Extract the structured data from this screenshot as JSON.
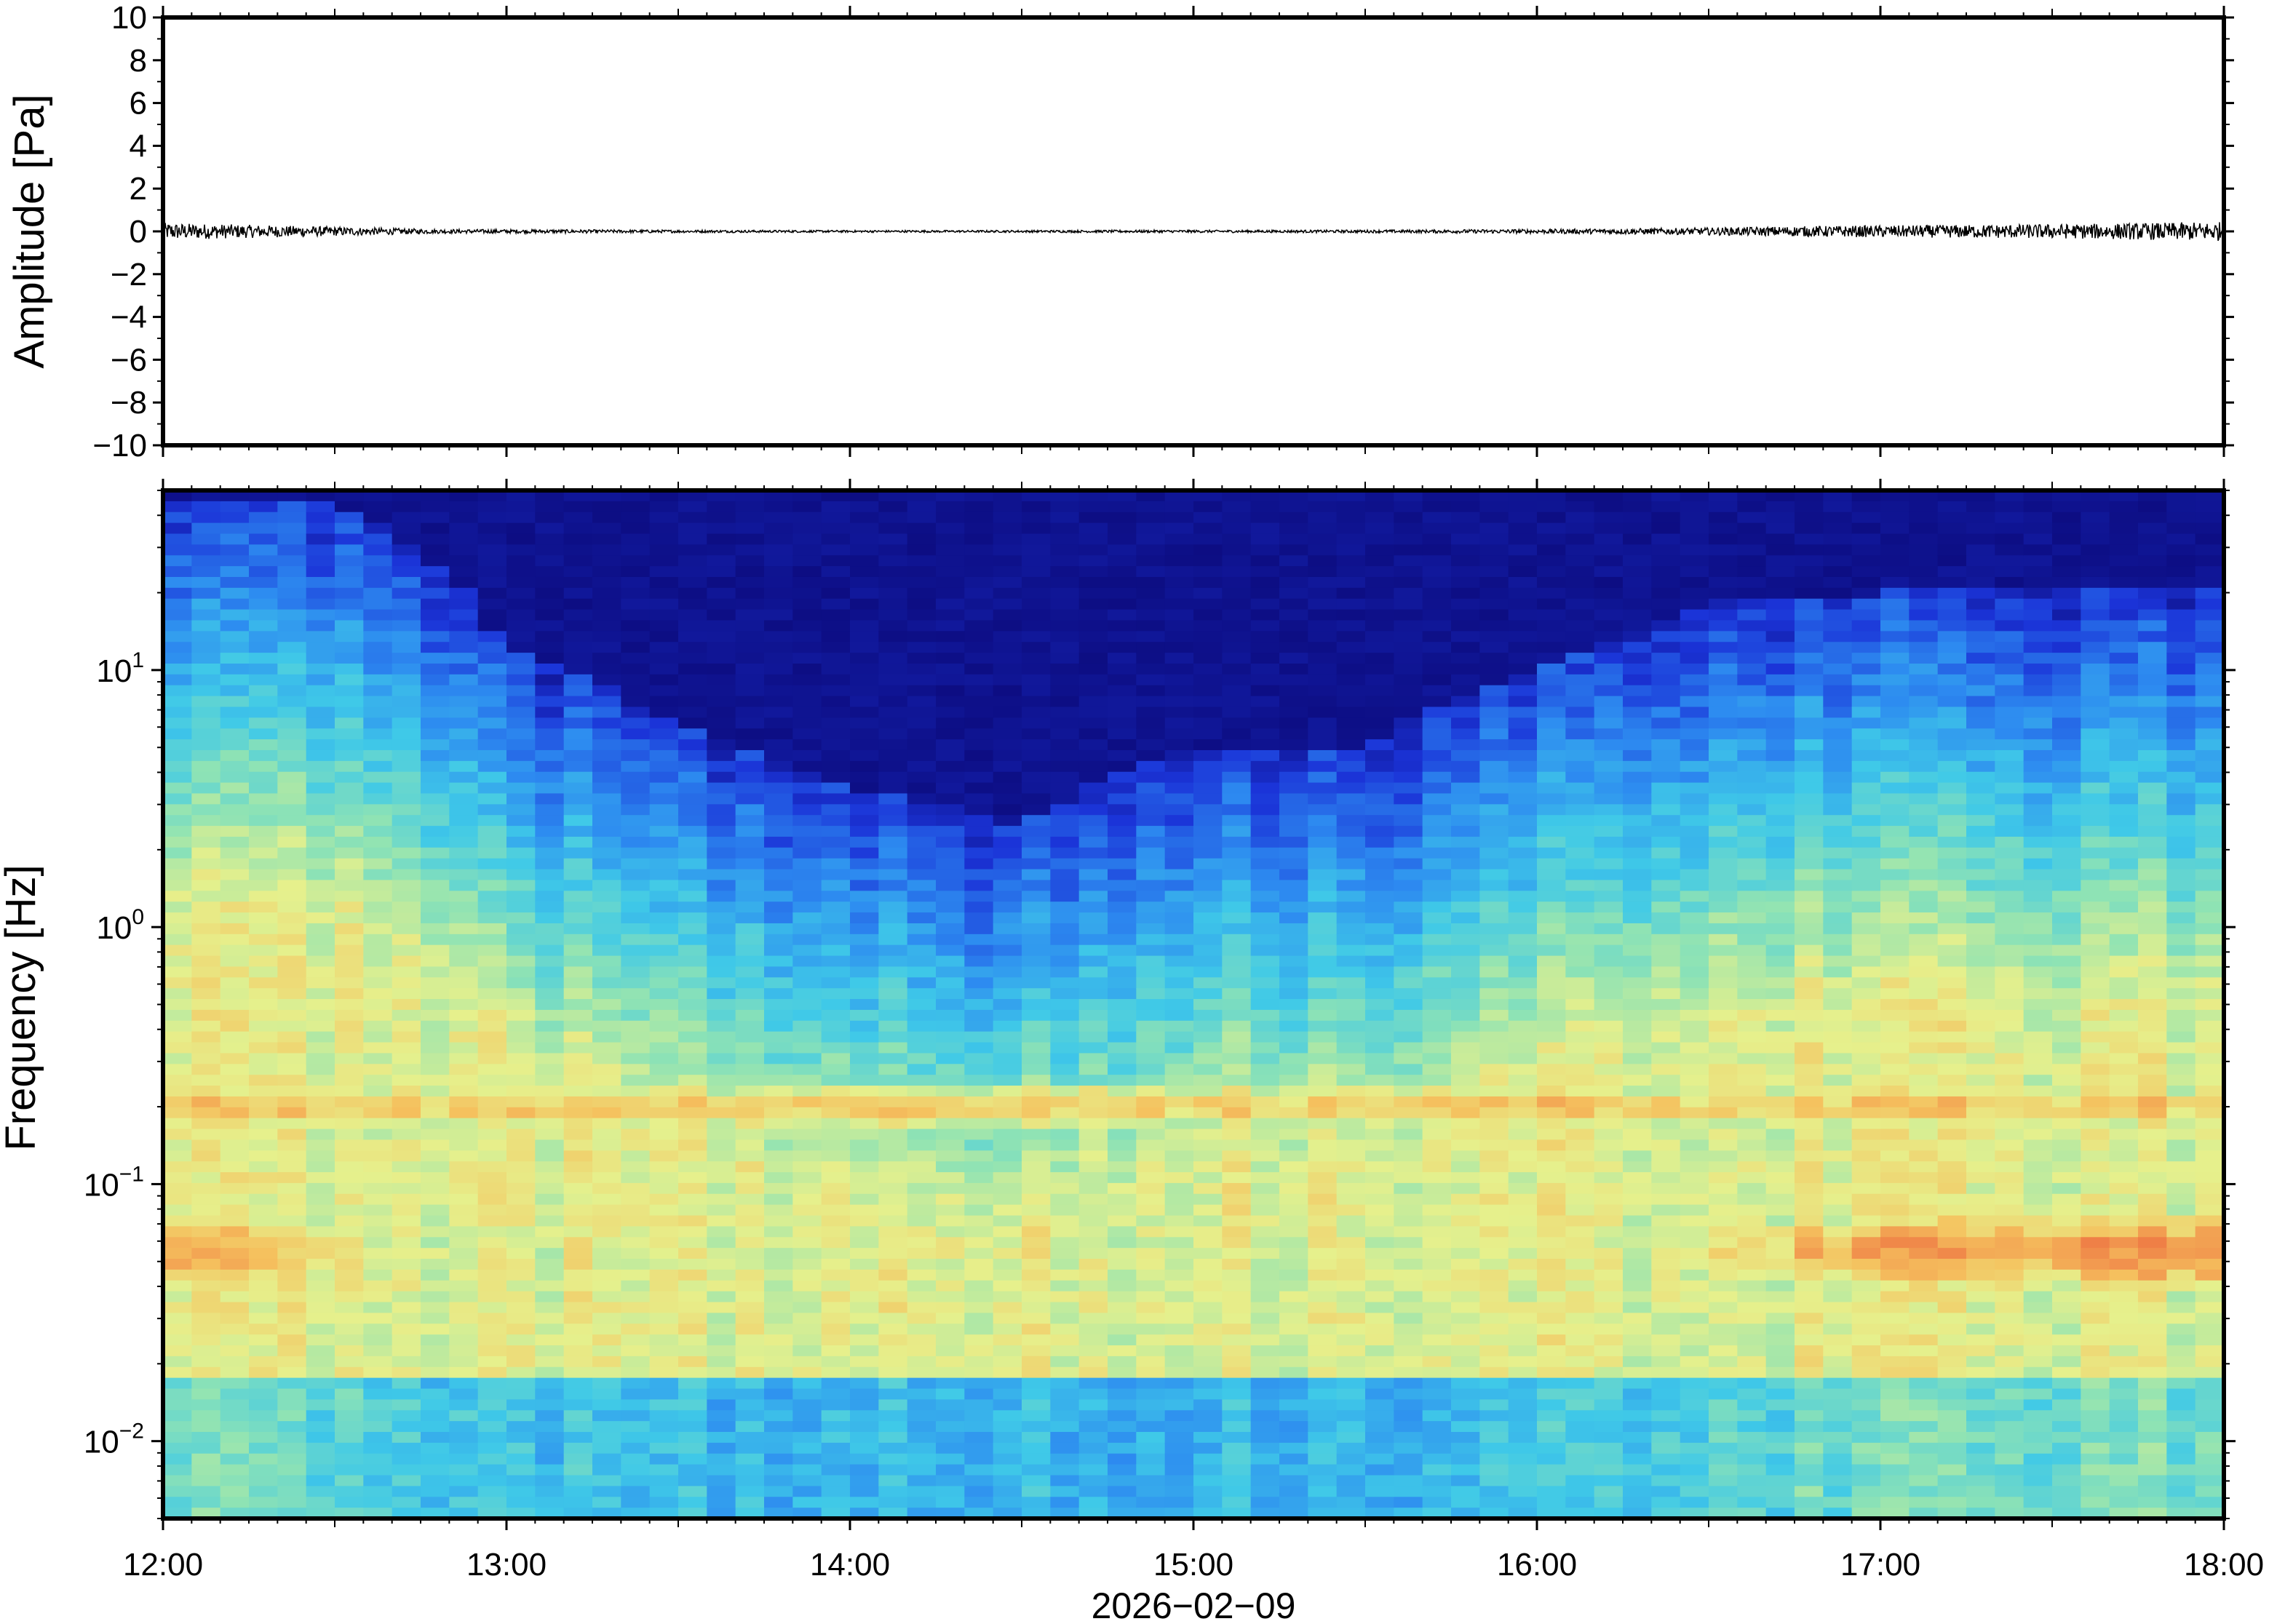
{
  "chart_data": [
    {
      "type": "line",
      "panel": "waveform",
      "title": "",
      "ylabel": "Amplitude [Pa]",
      "xlabel": "",
      "ylim": [
        -10,
        10
      ],
      "y_ticks": [
        10,
        8,
        6,
        4,
        2,
        0,
        -2,
        -4,
        -6,
        -8,
        -10
      ],
      "y_tick_labels": [
        "10",
        "8",
        "6",
        "4",
        "2",
        "0",
        "−2",
        "−4",
        "−6",
        "−8",
        "−10"
      ],
      "x_range_hours": [
        12,
        18
      ],
      "series": [
        {
          "color": "#000000",
          "noise_envelope": {
            "t_hours": [
              12.0,
              12.4,
              12.8,
              13.2,
              13.6,
              14.0,
              14.4,
              14.8,
              15.2,
              15.6,
              16.0,
              16.4,
              16.8,
              17.2,
              17.6,
              18.0
            ],
            "amplitude_pa": [
              0.4,
              0.25,
              0.1,
              0.08,
              0.06,
              0.05,
              0.05,
              0.06,
              0.06,
              0.07,
              0.1,
              0.15,
              0.25,
              0.3,
              0.35,
              0.45
            ]
          }
        }
      ],
      "grid": false
    },
    {
      "type": "heatmap",
      "panel": "spectrogram",
      "title": "",
      "ylabel": "Frequency [Hz]",
      "xlabel": "2026−02−09",
      "yscale": "log",
      "ylim_hz": [
        0.005,
        50
      ],
      "y_ticks_hz": [
        0.01,
        0.1,
        1,
        10
      ],
      "y_tick_base": "10",
      "y_tick_exponents": [
        "−2",
        "−1",
        "0",
        "1"
      ],
      "x_ticks": [
        "12:00",
        "13:00",
        "14:00",
        "15:00",
        "16:00",
        "17:00",
        "18:00"
      ],
      "x_tick_hours": [
        12,
        13,
        14,
        15,
        16,
        17,
        18
      ],
      "colormap": "jet",
      "colormap_stops": [
        "#0a0673",
        "#1b34d8",
        "#2d8bf0",
        "#3fc9e8",
        "#8fe3b4",
        "#e6f08c",
        "#f5c15e",
        "#ef7c45",
        "#d7352a"
      ],
      "profile_t_hours": [
        12.0,
        12.5,
        13.0,
        13.5,
        14.0,
        14.5,
        15.0,
        15.5,
        16.0,
        16.5,
        17.0,
        17.5,
        18.0
      ],
      "dark_top_edge_hz": [
        45,
        45,
        12,
        6,
        3.5,
        2.5,
        5,
        5,
        10,
        18,
        20,
        20,
        20
      ],
      "low_freq_intensity": [
        0.85,
        0.7,
        0.45,
        0.4,
        0.35,
        0.33,
        0.35,
        0.38,
        0.45,
        0.7,
        0.82,
        0.85,
        0.88
      ],
      "grid": false
    }
  ]
}
